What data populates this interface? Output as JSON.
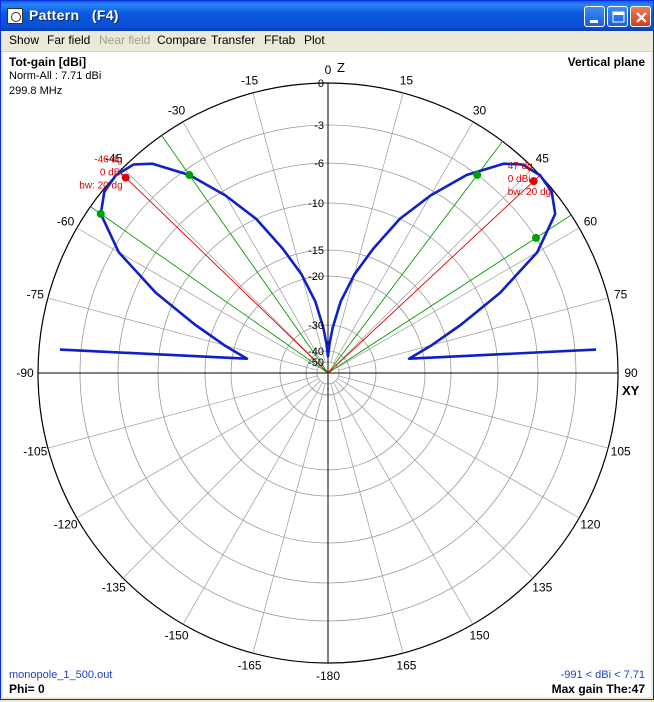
{
  "window": {
    "title": "Pattern   (F4)",
    "minimize_label": "minimize",
    "maximize_label": "maximize",
    "close_label": "close"
  },
  "menu": [
    "Show",
    "Far field",
    "Near field",
    "Compare",
    "Transfer",
    "FFtab",
    "Plot"
  ],
  "menu_disabled": [
    "Near field"
  ],
  "plot": {
    "quantity": "Tot-gain [dBi]",
    "norm": "Norm-All : 7.71 dBi",
    "frequency": "299.8 MHz",
    "plane": "Vertical plane",
    "filename": "monopole_1_500.out",
    "phi": "Phi= 0",
    "range": "-991 < dBi < 7.71",
    "max_gain": "Max gain The:47",
    "axis_top": "Z",
    "axis_right": "XY"
  },
  "chart_data": {
    "type": "polar",
    "angle_labels": [
      "0",
      "15",
      "30",
      "45",
      "60",
      "75",
      "90",
      "105",
      "120",
      "135",
      "150",
      "165",
      "-180",
      "-165",
      "-150",
      "-135",
      "-120",
      "-105",
      "-90",
      "-75",
      "-60",
      "-45",
      "-30",
      "-15"
    ],
    "radial_labels": [
      "0",
      "-3",
      "-6",
      "-10",
      "-15",
      "-20",
      "-30",
      "-40",
      "-50"
    ],
    "radial_db": [
      0,
      -3,
      -6,
      -10,
      -15,
      -20,
      -30,
      -40,
      -50
    ],
    "series": [
      {
        "color": "#1020C8",
        "theta_deg": [
          -85,
          -80,
          -75,
          -70,
          -65,
          -60,
          -55,
          -51,
          -47,
          -43,
          -40,
          -35,
          -30,
          -25,
          -20,
          -15,
          -10,
          -6,
          -3,
          0,
          3,
          6,
          10,
          15,
          20,
          25,
          30,
          35,
          40,
          43,
          47,
          51,
          55,
          60,
          65,
          70,
          75,
          80,
          85
        ],
        "gain_dbi_norm": [
          -1.5,
          -23,
          -18,
          -13,
          -8,
          -3.5,
          -0.9,
          -0.15,
          0,
          -0.35,
          -1.2,
          -3.5,
          -6.5,
          -10,
          -14,
          -19,
          -25,
          -31,
          -37,
          -45,
          -37,
          -31,
          -25,
          -19,
          -14,
          -10,
          -6.5,
          -3.5,
          -1.2,
          -0.35,
          0,
          -0.15,
          -0.9,
          -3.5,
          -8,
          -13,
          -18,
          -23,
          -1.5
        ]
      }
    ],
    "markers": {
      "left": {
        "angle": "-46 dg",
        "gain": "0 dBi",
        "bw": "bw: 20 dg"
      },
      "right": {
        "angle": "47 dg",
        "gain": "0 dBi",
        "bw": "bw: 20 dg"
      }
    },
    "marker_theta_deg": [
      -46,
      47
    ],
    "halfpower_theta_deg": [
      -55,
      -35,
      37,
      57
    ],
    "colors": {
      "grid": "#9A9A9A",
      "axis": "#000000",
      "pattern": "#1020C8",
      "marker": "#E00000",
      "halfpower": "#00A000",
      "label_blue": "#1F3FBF"
    }
  }
}
